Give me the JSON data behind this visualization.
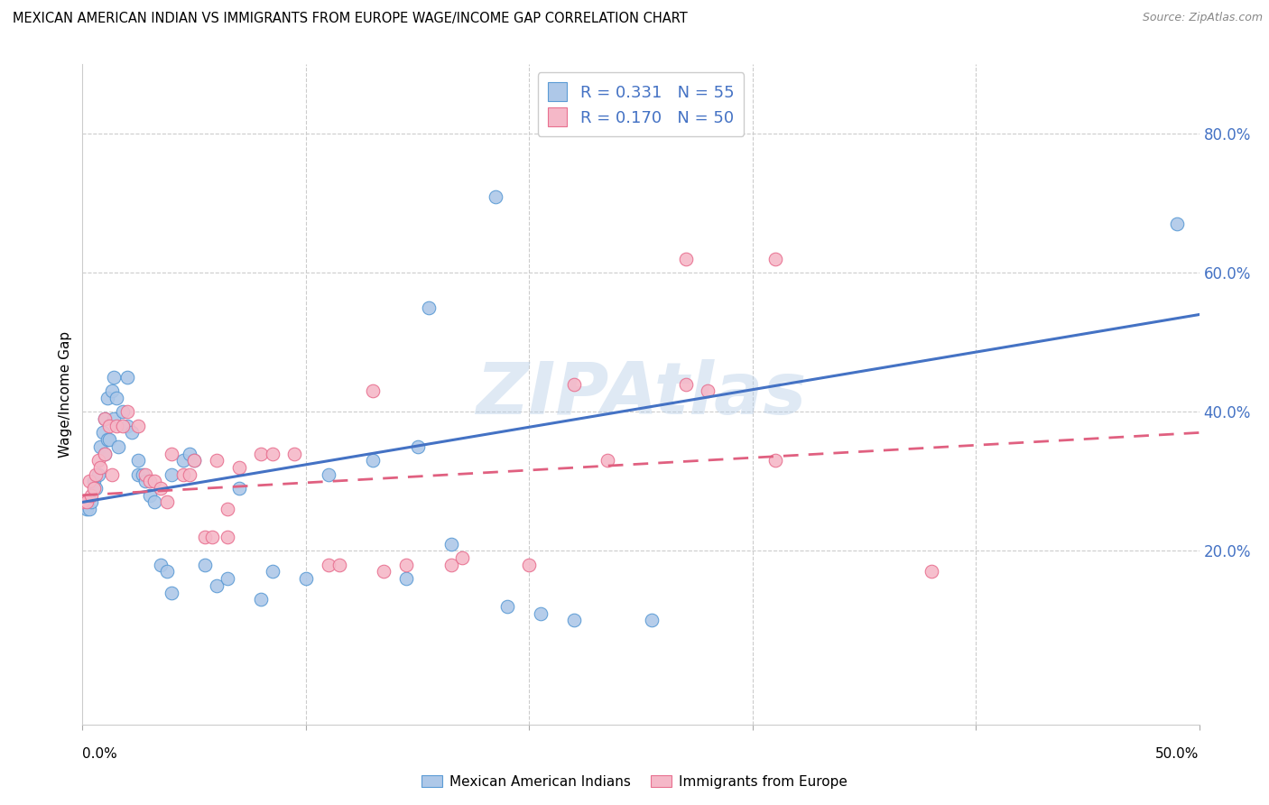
{
  "title": "MEXICAN AMERICAN INDIAN VS IMMIGRANTS FROM EUROPE WAGE/INCOME GAP CORRELATION CHART",
  "source": "Source: ZipAtlas.com",
  "ylabel": "Wage/Income Gap",
  "right_yticks": [
    "20.0%",
    "40.0%",
    "60.0%",
    "80.0%"
  ],
  "right_ytick_vals": [
    20,
    40,
    60,
    80
  ],
  "watermark": "ZIPAtlas",
  "legend1_R": "0.331",
  "legend1_N": "55",
  "legend2_R": "0.170",
  "legend2_N": "50",
  "blue_color": "#aec8e8",
  "pink_color": "#f5b8c8",
  "blue_edge_color": "#5b9bd5",
  "pink_edge_color": "#e87090",
  "blue_line_color": "#4472c4",
  "pink_line_color": "#e06080",
  "blue_scatter": [
    [
      0.0,
      27
    ],
    [
      0.2,
      26
    ],
    [
      0.3,
      26
    ],
    [
      0.4,
      27
    ],
    [
      0.5,
      30
    ],
    [
      0.6,
      29
    ],
    [
      0.7,
      31
    ],
    [
      0.8,
      35
    ],
    [
      0.9,
      37
    ],
    [
      1.0,
      34
    ],
    [
      1.0,
      39
    ],
    [
      1.1,
      36
    ],
    [
      1.1,
      42
    ],
    [
      1.2,
      36
    ],
    [
      1.3,
      43
    ],
    [
      1.4,
      45
    ],
    [
      1.4,
      39
    ],
    [
      1.5,
      42
    ],
    [
      1.6,
      35
    ],
    [
      1.8,
      40
    ],
    [
      2.0,
      45
    ],
    [
      2.0,
      38
    ],
    [
      2.2,
      37
    ],
    [
      2.5,
      33
    ],
    [
      2.5,
      31
    ],
    [
      2.7,
      31
    ],
    [
      2.8,
      30
    ],
    [
      3.0,
      28
    ],
    [
      3.2,
      27
    ],
    [
      3.5,
      18
    ],
    [
      3.8,
      17
    ],
    [
      4.0,
      14
    ],
    [
      4.0,
      31
    ],
    [
      4.5,
      33
    ],
    [
      4.8,
      34
    ],
    [
      5.0,
      33
    ],
    [
      5.5,
      18
    ],
    [
      6.0,
      15
    ],
    [
      6.5,
      16
    ],
    [
      7.0,
      29
    ],
    [
      8.0,
      13
    ],
    [
      8.5,
      17
    ],
    [
      10.0,
      16
    ],
    [
      11.0,
      31
    ],
    [
      13.0,
      33
    ],
    [
      14.5,
      16
    ],
    [
      15.0,
      35
    ],
    [
      15.5,
      55
    ],
    [
      16.5,
      21
    ],
    [
      18.5,
      71
    ],
    [
      19.0,
      12
    ],
    [
      20.5,
      11
    ],
    [
      22.0,
      10
    ],
    [
      25.5,
      10
    ],
    [
      49.0,
      67
    ]
  ],
  "pink_scatter": [
    [
      0.0,
      27
    ],
    [
      0.2,
      27
    ],
    [
      0.3,
      30
    ],
    [
      0.4,
      28
    ],
    [
      0.5,
      29
    ],
    [
      0.6,
      31
    ],
    [
      0.7,
      33
    ],
    [
      0.8,
      32
    ],
    [
      1.0,
      39
    ],
    [
      1.0,
      34
    ],
    [
      1.2,
      38
    ],
    [
      1.3,
      31
    ],
    [
      1.5,
      38
    ],
    [
      1.8,
      38
    ],
    [
      2.0,
      40
    ],
    [
      2.5,
      38
    ],
    [
      2.8,
      31
    ],
    [
      3.0,
      30
    ],
    [
      3.2,
      30
    ],
    [
      3.5,
      29
    ],
    [
      3.8,
      27
    ],
    [
      4.0,
      34
    ],
    [
      4.5,
      31
    ],
    [
      4.8,
      31
    ],
    [
      5.0,
      33
    ],
    [
      5.5,
      22
    ],
    [
      5.8,
      22
    ],
    [
      6.0,
      33
    ],
    [
      6.5,
      26
    ],
    [
      6.5,
      22
    ],
    [
      7.0,
      32
    ],
    [
      8.0,
      34
    ],
    [
      8.5,
      34
    ],
    [
      9.5,
      34
    ],
    [
      11.0,
      18
    ],
    [
      11.5,
      18
    ],
    [
      13.0,
      43
    ],
    [
      13.5,
      17
    ],
    [
      14.5,
      18
    ],
    [
      16.5,
      18
    ],
    [
      17.0,
      19
    ],
    [
      20.0,
      18
    ],
    [
      22.0,
      44
    ],
    [
      23.5,
      33
    ],
    [
      27.0,
      44
    ],
    [
      27.0,
      62
    ],
    [
      28.0,
      43
    ],
    [
      31.0,
      33
    ],
    [
      31.0,
      62
    ],
    [
      38.0,
      17
    ]
  ],
  "xlim": [
    0,
    50
  ],
  "ylim": [
    -5,
    90
  ],
  "x_ticks": [
    0,
    10,
    20,
    30,
    40,
    50
  ],
  "blue_trend_x": [
    0,
    50
  ],
  "blue_trend_y": [
    27,
    54
  ],
  "pink_trend_x": [
    0,
    50
  ],
  "pink_trend_y": [
    28,
    37
  ]
}
